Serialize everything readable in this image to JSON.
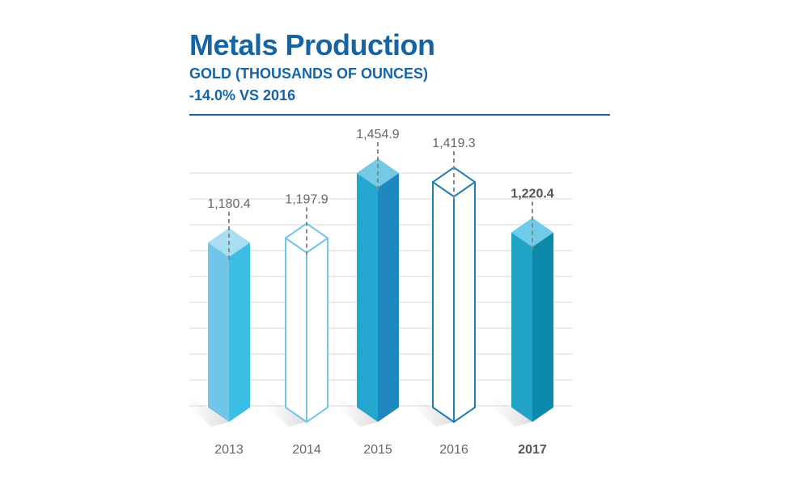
{
  "header": {
    "title": "Metals Production",
    "subtitle": "GOLD (THOUSANDS OF OUNCES)",
    "change": "-14.0% VS 2016"
  },
  "colors": {
    "title": "#1565a6",
    "rule": "#1565a6",
    "grid": "#d9d9d9",
    "label": "#666666",
    "label_strong": "#555555",
    "leader": "#888888"
  },
  "chart_data": {
    "type": "bar",
    "title": "Metals Production",
    "ylabel": "GOLD (THOUSANDS OF OUNCES)",
    "categories": [
      "2013",
      "2014",
      "2015",
      "2016",
      "2017"
    ],
    "values": [
      1180.4,
      1197.9,
      1454.9,
      1419.3,
      1220.4
    ],
    "value_labels": [
      "1,180.4",
      "1,197.9",
      "1,454.9",
      "1,419.3",
      "1,220.4"
    ],
    "highlighted": "2017",
    "bar_styles": [
      {
        "style": "solid",
        "front": "#6fc6e8",
        "side": "#3bbde4",
        "top": "#a8ddf2"
      },
      {
        "style": "outline",
        "stroke": "#6fc6e8"
      },
      {
        "style": "solid",
        "front": "#24a7cf",
        "side": "#1e88bf",
        "top": "#74c9e7"
      },
      {
        "style": "outline",
        "stroke": "#1e7db8"
      },
      {
        "style": "solid",
        "front": "#22a3c8",
        "side": "#0d89ac",
        "top": "#6fcbe8"
      }
    ],
    "grid": true,
    "legend": "none"
  }
}
